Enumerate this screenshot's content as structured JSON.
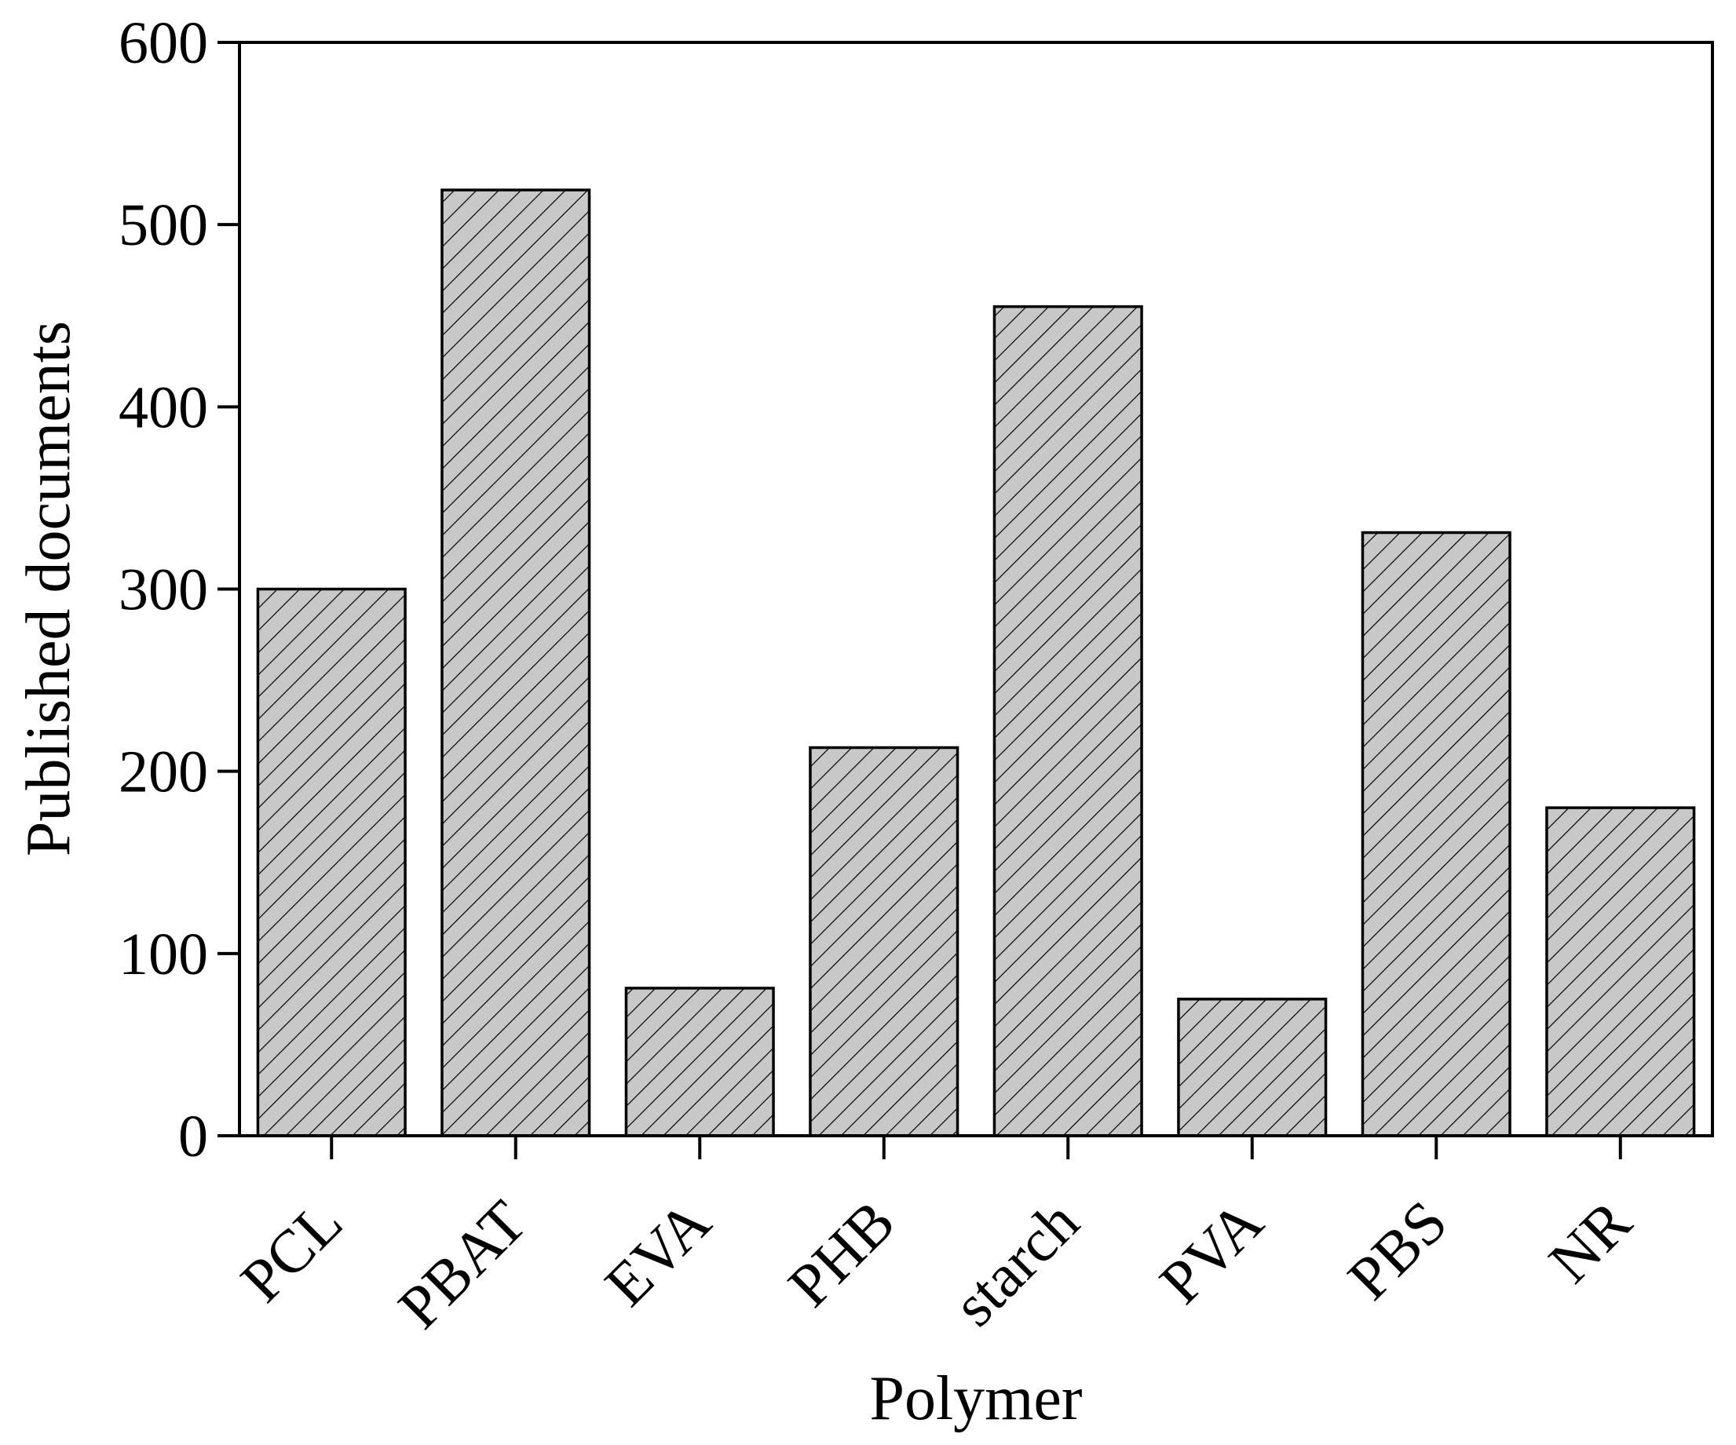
{
  "chart_data": {
    "type": "bar",
    "title": "",
    "xlabel": "Polymer",
    "ylabel": "Published documents",
    "categories": [
      "PCL",
      "PBAT",
      "EVA",
      "PHB",
      "starch",
      "PVA",
      "PBS",
      "NR"
    ],
    "values": [
      300,
      519,
      81,
      213,
      455,
      75,
      331,
      180
    ],
    "ylim": [
      0,
      600
    ],
    "yticks": [
      0,
      100,
      200,
      300,
      400,
      500,
      600
    ],
    "grid": false,
    "legend": "none",
    "bar_fill": "#c8c8c8",
    "bar_hatch": "diagonal"
  }
}
